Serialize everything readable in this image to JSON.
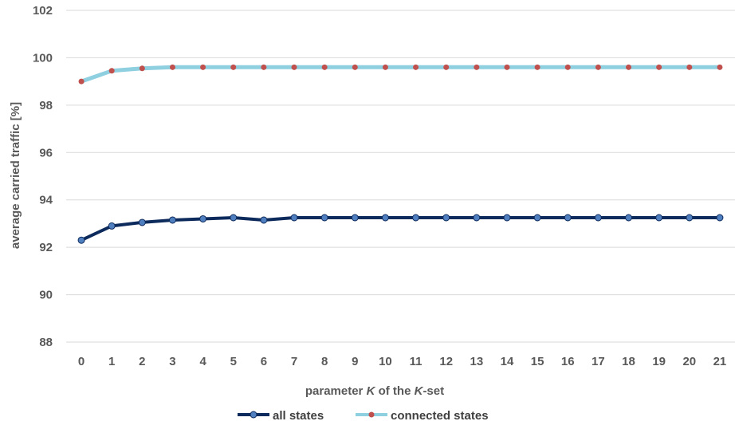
{
  "chart_data": {
    "type": "line",
    "title": "",
    "xlabel": {
      "prefix": "parameter ",
      "k1": "K",
      "middle": " of the ",
      "k2": "K",
      "suffix": "-set"
    },
    "ylabel": "average carried traffic [%]",
    "ylim": [
      88,
      102
    ],
    "yticks": [
      88,
      90,
      92,
      94,
      96,
      98,
      100,
      102
    ],
    "x": [
      0,
      1,
      2,
      3,
      4,
      5,
      6,
      7,
      8,
      9,
      10,
      11,
      12,
      13,
      14,
      15,
      16,
      17,
      18,
      19,
      20,
      21
    ],
    "series": [
      {
        "name": "all states",
        "color": "#0d2a5c",
        "marker_color": "#4f7fbf",
        "values": [
          92.3,
          92.9,
          93.05,
          93.15,
          93.2,
          93.25,
          93.15,
          93.25,
          93.25,
          93.25,
          93.25,
          93.25,
          93.25,
          93.25,
          93.25,
          93.25,
          93.25,
          93.25,
          93.25,
          93.25,
          93.25,
          93.25
        ]
      },
      {
        "name": "connected states",
        "color": "#8ecfe0",
        "marker_color": "#c0504d",
        "values": [
          99.0,
          99.45,
          99.55,
          99.6,
          99.6,
          99.6,
          99.6,
          99.6,
          99.6,
          99.6,
          99.6,
          99.6,
          99.6,
          99.6,
          99.6,
          99.6,
          99.6,
          99.6,
          99.6,
          99.6,
          99.6,
          99.6
        ]
      }
    ],
    "grid": "horizontal",
    "legend": "bottom-center"
  }
}
